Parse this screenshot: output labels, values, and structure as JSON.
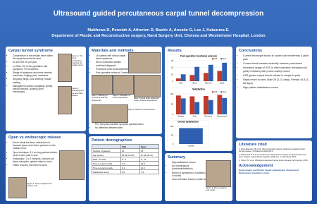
{
  "header": {
    "title": "Ultrasound guided percutaneous carpal tunnel decompression",
    "authors": "Matthews D, Ponniah A, Atherton D, Bashir A, Ansede G, Lee J, Katsarma E.",
    "affiliation": "Department of Plastic and Reconstructive surgery, Hand Surgery Unit, Chelsea and Westminster Hospital, London"
  },
  "carpal_tunnel": {
    "heading": "Carpal tunnel syndrome",
    "bullets": [
      "Compression of the median nerve within the carpal tunnel at the wrist",
      "50-150,000 UK per year",
      "In USA 1-3% of the population with symptoms, 5% of workers",
      "Range of symptoms and nerve severity: numbness, tingling, pain, weakness",
      "Dropping things, poor dexterity, muscle wasting",
      "Management options: analgesia, splints, steroid injection, surgery (open, endoscopic)"
    ],
    "captions": [
      "Figure 1. The 'flexor retinaculum' overlying the median nerve",
      "Figure 2. Operating port site and hand position"
    ]
  },
  "open_vs_endoscopic": {
    "heading": "Open vs endoscopic release",
    "bullets": [
      "Aim to divide the flexor retinaculum to increase space and relieve pressure on the median nerve",
      "Open technique: 3-4 cm long palmar incision, circle of skin, pain in scar",
      "Endoscopic: 1 or 2 incisions, reduced soft tissue disruption, quicker return to work",
      "Faster recovery and return to work"
    ],
    "caption": "Figure 3. Open carpal tunnel release scar"
  },
  "methods": {
    "heading": "Materials and methods",
    "bullets": [
      "15 patients with clinical carpal tunnel syndrome",
      "Nerve conduction studies confirmed diagnosis",
      "Procedure under local anaesthetic",
      "Post-operative review at 2 weeks"
    ],
    "steps": [
      "Step 1: Marking of structures with the ultrasound",
      "Step 2: Infiltration of local anaesthetic",
      "Step 3: Hook knife advanced under ultrasound guidance",
      "Step 4: Division of retinaculum"
    ],
    "notes": [
      "Pre- and post-operative symptom questionnaires",
      "No difference between sites"
    ]
  },
  "demographics": {
    "heading": "Patient demographics",
    "table": {
      "header": [
        "",
        "USS",
        "Open"
      ],
      "rows": [
        [
          "Number of patients",
          "15",
          "15"
        ],
        [
          "Age (years)",
          "58.33 (34-82)",
          "57.66 (44-71)"
        ],
        [
          "Male : Female",
          "6 : 9",
          "5 : 10"
        ],
        [
          "Time to return to ADL",
          "4.2",
          "10.5"
        ],
        [
          "Time to return to work",
          "9.1",
          "21.3"
        ],
        [
          "Satisfaction score",
          "9.2",
          "7.4"
        ]
      ]
    }
  },
  "results": {
    "heading": "Results",
    "charts": [
      {
        "type": "bar",
        "title": "Post-operative functional outcome",
        "categories": [
          "ADL",
          "Work",
          "Pain free",
          "Sport"
        ],
        "series": [
          {
            "name": "USS",
            "color": "#c0392b",
            "values": [
              4,
              9,
              12,
              15
            ]
          },
          {
            "name": "Open",
            "color": "#2e5fb0",
            "values": [
              10,
              21,
              24,
              27
            ]
          }
        ],
        "ylim": [
          0,
          30
        ],
        "yticks": [
          0,
          10,
          20,
          30
        ]
      },
      {
        "type": "bar",
        "title": "Satisfaction",
        "categories": [
          "Surgery",
          "Scar",
          "Recovery",
          "Recommend"
        ],
        "series": [
          {
            "name": "USS",
            "color": "#c0392b",
            "values": [
              92,
              88,
              90,
              95
            ]
          },
          {
            "name": "Open",
            "color": "#2e5fb0",
            "values": [
              78,
              60,
              70,
              80
            ]
          }
        ],
        "ylim": [
          0,
          100
        ],
        "yticks": [
          0,
          50,
          100
        ]
      },
      {
        "type": "bar",
        "title": "Overall Satisfaction",
        "categories": [
          "Overall"
        ],
        "series": [
          {
            "name": "USS",
            "color": "#2e5fb0",
            "values": [
              90
            ]
          }
        ],
        "ylim": [
          0,
          100
        ],
        "yticks": [
          0,
          50,
          100
        ]
      }
    ]
  },
  "summary": {
    "heading": "Summary",
    "bullets": [
      "High satisfaction scores",
      "No complications (numbness/infection)",
      "Return of symptoms in 0 patients at 6 months",
      "Less soft tissue trauma, smaller scar"
    ],
    "caption": "Figure 4. Post-operative scar result"
  },
  "conclusions": {
    "heading": "Conclusions",
    "bullets": [
      "Current technique known to cause scar tenderness & pillar pain",
      "Current trend towards minimally invasive procedures",
      "Increased usage of USS in other operative techniques (in pulley releases) with proven safety record",
      "USS guided carpal tunnel release is simple & quick",
      "Rapid return to work: Male 26 (1-21 days), Female 44.8 (2-84 days)",
      "High patient satisfaction scores"
    ]
  },
  "literature": {
    "heading": "Literature cited",
    "items": [
      "1. Rojo-Manaute JM et al. Ultra-minimally invasive ultrasound-guided carpal tunnel release. J Ultrasound Med 2013.",
      "2. Nakamichi K et al. Percutaneous carpal tunnel release compared with mini-open release using ultrasonographic guidance. J Hand Surg 2010.",
      "3. Chern TC et al. Ultrasound-assisted carpal tunnel release. Arthroscopy 2015."
    ]
  },
  "acknowledgement": {
    "heading": "Acknowledgement",
    "text": "Hand surgery and Plastic Surgery department, Chelsea and Westminster Hospital, London"
  }
}
